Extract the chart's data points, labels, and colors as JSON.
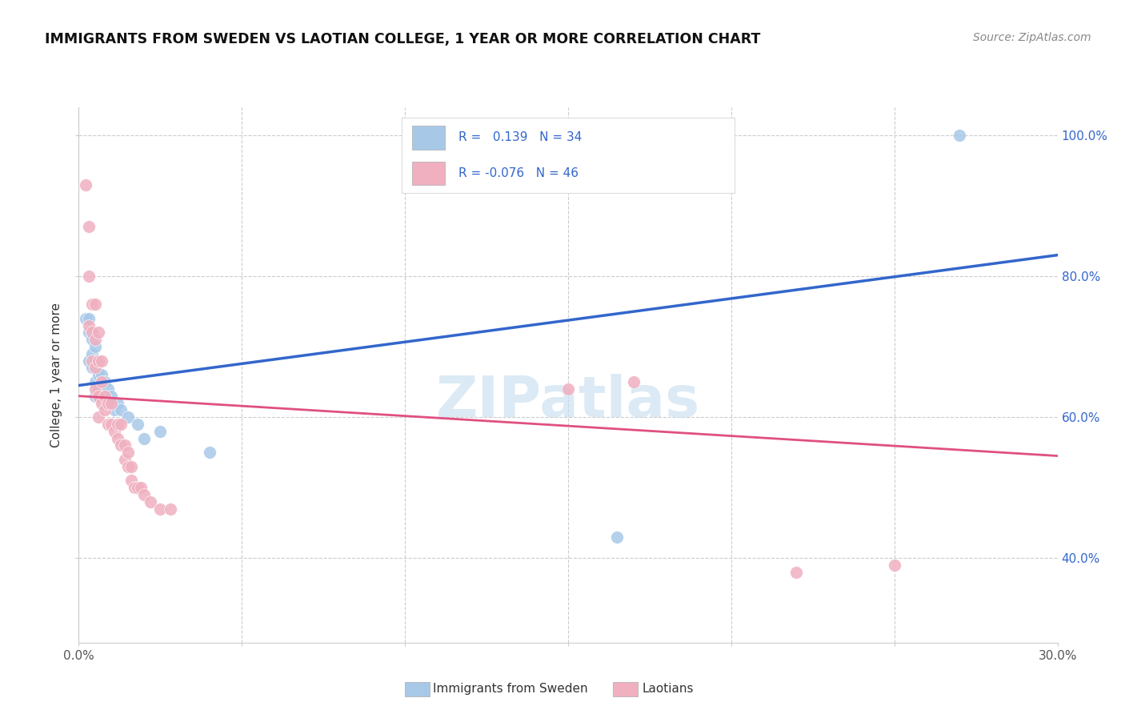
{
  "title": "IMMIGRANTS FROM SWEDEN VS LAOTIAN COLLEGE, 1 YEAR OR MORE CORRELATION CHART",
  "source": "Source: ZipAtlas.com",
  "ylabel": "College, 1 year or more",
  "xmin": 0.0,
  "xmax": 0.3,
  "ymin": 0.28,
  "ymax": 1.04,
  "grid_yticks": [
    0.4,
    0.6,
    0.8,
    1.0
  ],
  "right_yticklabels": [
    "40.0%",
    "60.0%",
    "80.0%",
    "100.0%"
  ],
  "grid_color": "#cccccc",
  "series1_color": "#a8c8e8",
  "series2_color": "#f0b0c0",
  "line1_color": "#3366cc",
  "line2_color": "#e05080",
  "series1_label": "Immigrants from Sweden",
  "series2_label": "Laotians",
  "sweden_x": [
    0.002,
    0.003,
    0.003,
    0.003,
    0.004,
    0.004,
    0.004,
    0.004,
    0.005,
    0.005,
    0.005,
    0.005,
    0.005,
    0.006,
    0.006,
    0.006,
    0.007,
    0.007,
    0.008,
    0.008,
    0.009,
    0.009,
    0.01,
    0.01,
    0.011,
    0.012,
    0.013,
    0.015,
    0.018,
    0.02,
    0.025,
    0.04,
    0.165,
    0.27
  ],
  "sweden_y": [
    0.74,
    0.74,
    0.72,
    0.68,
    0.72,
    0.71,
    0.69,
    0.67,
    0.7,
    0.68,
    0.67,
    0.65,
    0.63,
    0.66,
    0.64,
    0.63,
    0.66,
    0.63,
    0.65,
    0.63,
    0.64,
    0.62,
    0.63,
    0.62,
    0.61,
    0.62,
    0.61,
    0.6,
    0.59,
    0.57,
    0.58,
    0.55,
    0.43,
    1.0
  ],
  "laotian_x": [
    0.002,
    0.003,
    0.003,
    0.003,
    0.004,
    0.004,
    0.004,
    0.005,
    0.005,
    0.005,
    0.005,
    0.006,
    0.006,
    0.006,
    0.006,
    0.007,
    0.007,
    0.007,
    0.008,
    0.008,
    0.009,
    0.009,
    0.01,
    0.01,
    0.011,
    0.012,
    0.012,
    0.013,
    0.013,
    0.014,
    0.014,
    0.015,
    0.015,
    0.016,
    0.016,
    0.017,
    0.018,
    0.019,
    0.02,
    0.022,
    0.025,
    0.028,
    0.15,
    0.17,
    0.22,
    0.25
  ],
  "laotian_y": [
    0.93,
    0.87,
    0.8,
    0.73,
    0.76,
    0.72,
    0.68,
    0.76,
    0.71,
    0.67,
    0.64,
    0.72,
    0.68,
    0.63,
    0.6,
    0.68,
    0.65,
    0.62,
    0.63,
    0.61,
    0.62,
    0.59,
    0.62,
    0.59,
    0.58,
    0.59,
    0.57,
    0.59,
    0.56,
    0.56,
    0.54,
    0.55,
    0.53,
    0.53,
    0.51,
    0.5,
    0.5,
    0.5,
    0.49,
    0.48,
    0.47,
    0.47,
    0.64,
    0.65,
    0.38,
    0.39
  ]
}
